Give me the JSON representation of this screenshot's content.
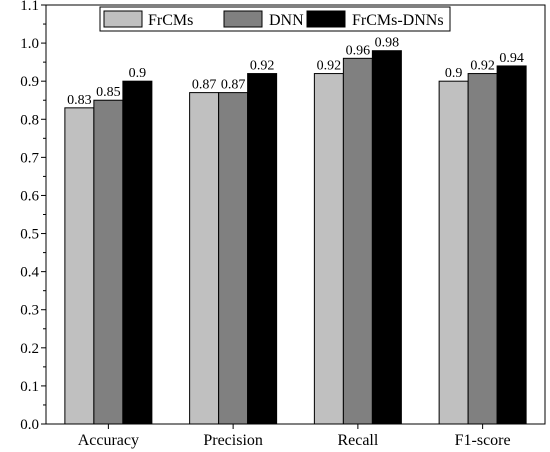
{
  "chart_data": {
    "type": "bar",
    "categories": [
      "Accuracy",
      "Precision",
      "Recall",
      "F1-score"
    ],
    "series": [
      {
        "name": "FrCMs",
        "values": [
          0.83,
          0.87,
          0.92,
          0.9
        ],
        "color": "#c0c0c0",
        "labels": [
          "0.83",
          "0.87",
          "0.92",
          "0.9"
        ]
      },
      {
        "name": "DNN",
        "values": [
          0.85,
          0.87,
          0.96,
          0.92
        ],
        "color": "#808080",
        "labels": [
          "0.85",
          "0.87",
          "0.96",
          "0.92"
        ]
      },
      {
        "name": "FrCMs-DNNs",
        "values": [
          0.9,
          0.92,
          0.98,
          0.94
        ],
        "color": "#000000",
        "labels": [
          "0.9",
          "0.92",
          "0.98",
          "0.94"
        ]
      }
    ],
    "title": "",
    "xlabel": "",
    "ylabel": "",
    "ylim": [
      0,
      1.1
    ],
    "yticks": [
      "0.0",
      "0.1",
      "0.2",
      "0.3",
      "0.4",
      "0.5",
      "0.6",
      "0.7",
      "0.8",
      "0.9",
      "1.0",
      "1.1"
    ],
    "grid": false,
    "legend_position": "top-center"
  }
}
